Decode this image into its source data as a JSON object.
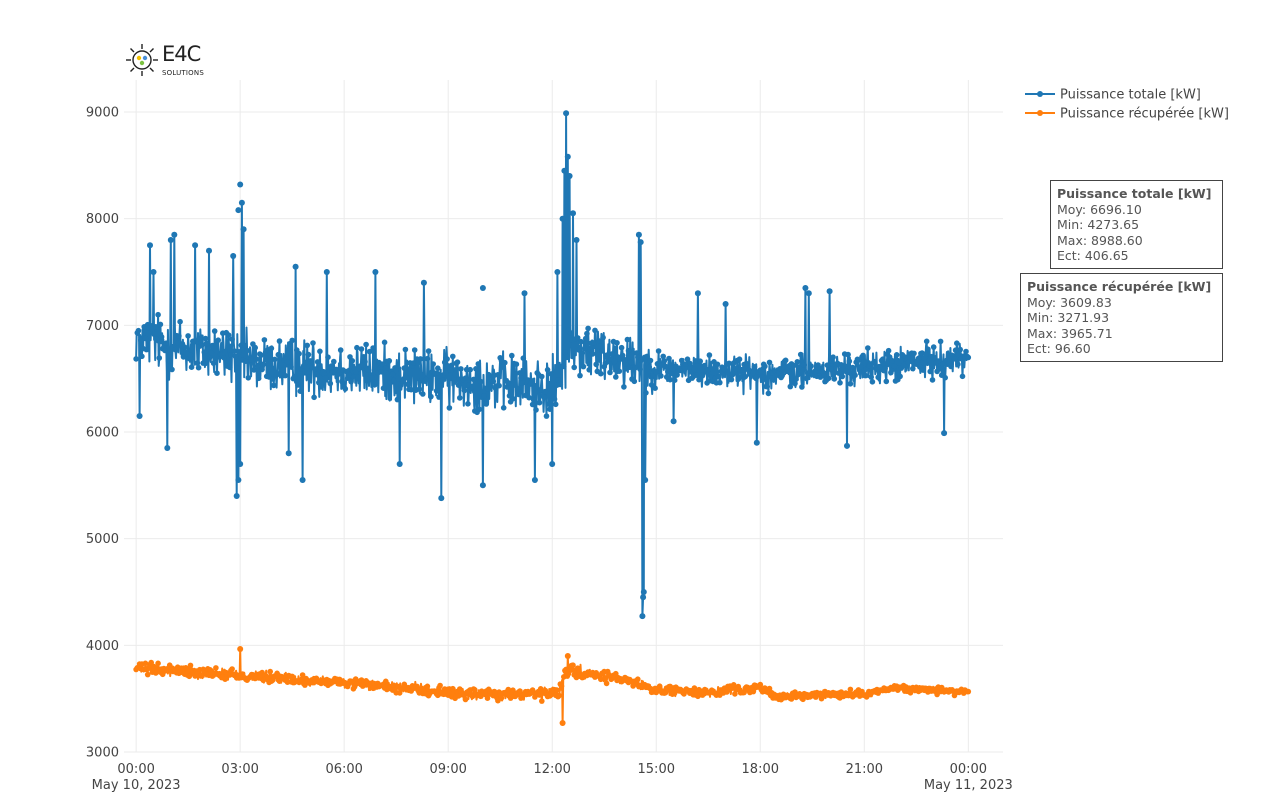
{
  "logo": {
    "text": "E4C",
    "subtext": "SOLUTIONS"
  },
  "chart_data": {
    "type": "line",
    "title": "",
    "xlabel": "",
    "ylabel": "",
    "ylim": [
      3000,
      9300
    ],
    "xlim_hours": [
      -0.35,
      25.0
    ],
    "y_ticks": [
      3000,
      4000,
      5000,
      6000,
      7000,
      8000,
      9000
    ],
    "x_ticks": [
      {
        "hour": 0,
        "label": "00:00",
        "date": "May 10, 2023"
      },
      {
        "hour": 3,
        "label": "03:00",
        "date": ""
      },
      {
        "hour": 6,
        "label": "06:00",
        "date": ""
      },
      {
        "hour": 9,
        "label": "09:00",
        "date": ""
      },
      {
        "hour": 12,
        "label": "12:00",
        "date": ""
      },
      {
        "hour": 15,
        "label": "15:00",
        "date": ""
      },
      {
        "hour": 18,
        "label": "18:00",
        "date": ""
      },
      {
        "hour": 21,
        "label": "21:00",
        "date": ""
      },
      {
        "hour": 24,
        "label": "00:00",
        "date": "May 11, 2023"
      }
    ],
    "grid": true,
    "legend_position": "top-right",
    "series": [
      {
        "name": "Puissance totale [kW]",
        "color": "#1f77b4",
        "stats": {
          "moy": "6696.10",
          "min": "4273.65",
          "max": "8988.60",
          "ect": "406.65"
        },
        "profile": [
          [
            0.0,
            6900,
            350
          ],
          [
            1.0,
            6800,
            420
          ],
          [
            2.0,
            6750,
            380
          ],
          [
            2.9,
            6700,
            400
          ],
          [
            3.2,
            6650,
            380
          ],
          [
            5.0,
            6600,
            380
          ],
          [
            7.0,
            6550,
            380
          ],
          [
            9.0,
            6500,
            380
          ],
          [
            11.0,
            6450,
            380
          ],
          [
            12.2,
            6400,
            400
          ],
          [
            12.4,
            6800,
            420
          ],
          [
            14.0,
            6700,
            380
          ],
          [
            14.7,
            6600,
            380
          ],
          [
            15.0,
            6600,
            220
          ],
          [
            18.0,
            6550,
            230
          ],
          [
            19.0,
            6550,
            230
          ],
          [
            21.0,
            6600,
            230
          ],
          [
            24.0,
            6700,
            220
          ]
        ],
        "peaks": [
          [
            0.4,
            7750
          ],
          [
            0.5,
            7500
          ],
          [
            1.0,
            7800
          ],
          [
            1.1,
            7850
          ],
          [
            1.7,
            7750
          ],
          [
            2.1,
            7700
          ],
          [
            2.8,
            7650
          ],
          [
            2.95,
            8080
          ],
          [
            3.0,
            8320
          ],
          [
            3.05,
            8150
          ],
          [
            3.1,
            7900
          ],
          [
            4.6,
            7550
          ],
          [
            5.5,
            7500
          ],
          [
            6.9,
            7500
          ],
          [
            8.3,
            7400
          ],
          [
            10.0,
            7350
          ],
          [
            11.2,
            7300
          ],
          [
            12.15,
            7500
          ],
          [
            12.3,
            8000
          ],
          [
            12.35,
            8450
          ],
          [
            12.4,
            8988.6
          ],
          [
            12.45,
            8580
          ],
          [
            12.5,
            8400
          ],
          [
            12.6,
            8050
          ],
          [
            12.7,
            7800
          ],
          [
            14.5,
            7850
          ],
          [
            14.55,
            7780
          ],
          [
            16.2,
            7300
          ],
          [
            17.0,
            7200
          ],
          [
            19.3,
            7350
          ],
          [
            19.4,
            7300
          ],
          [
            20.0,
            7320
          ]
        ],
        "troughs": [
          [
            0.1,
            6150
          ],
          [
            0.9,
            5850
          ],
          [
            2.9,
            5400
          ],
          [
            2.95,
            5550
          ],
          [
            3.0,
            5700
          ],
          [
            4.4,
            5800
          ],
          [
            4.8,
            5550
          ],
          [
            7.6,
            5700
          ],
          [
            8.8,
            5380
          ],
          [
            10.0,
            5500
          ],
          [
            11.5,
            5550
          ],
          [
            12.0,
            5700
          ],
          [
            14.6,
            4273.65
          ],
          [
            14.62,
            4450
          ],
          [
            14.64,
            4500
          ],
          [
            14.68,
            5550
          ],
          [
            15.5,
            6100
          ],
          [
            17.9,
            5900
          ],
          [
            20.5,
            5870
          ],
          [
            23.3,
            5990
          ]
        ]
      },
      {
        "name": "Puissance récupérée [kW]",
        "color": "#ff7f0e",
        "stats": {
          "moy": "3609.83",
          "min": "3271.93",
          "max": "3965.71",
          "ect": "96.60"
        },
        "profile": [
          [
            0.0,
            3780,
            80
          ],
          [
            1.0,
            3770,
            80
          ],
          [
            2.0,
            3750,
            80
          ],
          [
            3.0,
            3720,
            85
          ],
          [
            5.0,
            3670,
            70
          ],
          [
            7.0,
            3620,
            70
          ],
          [
            9.0,
            3560,
            80
          ],
          [
            10.5,
            3530,
            80
          ],
          [
            12.2,
            3550,
            90
          ],
          [
            12.4,
            3760,
            90
          ],
          [
            14.0,
            3680,
            70
          ],
          [
            15.0,
            3580,
            60
          ],
          [
            16.5,
            3560,
            60
          ],
          [
            18.0,
            3600,
            60
          ],
          [
            18.5,
            3520,
            50
          ],
          [
            21.0,
            3550,
            50
          ],
          [
            22.0,
            3600,
            50
          ],
          [
            24.0,
            3560,
            50
          ]
        ],
        "peaks": [
          [
            3.0,
            3965.71
          ],
          [
            12.45,
            3900
          ]
        ],
        "troughs": [
          [
            12.3,
            3271.93
          ]
        ]
      }
    ]
  },
  "legend": {
    "items": [
      {
        "label": "Puissance totale [kW]",
        "color": "#1f77b4"
      },
      {
        "label": "Puissance récupérée [kW]",
        "color": "#ff7f0e"
      }
    ]
  },
  "stat_boxes": [
    {
      "title": "Puissance totale [kW]",
      "moy": "Moy: 6696.10",
      "min": "Min: 4273.65",
      "max": "Max: 8988.60",
      "ect": "Ect: 406.65"
    },
    {
      "title": "Puissance récupérée [kW]",
      "moy": "Moy: 3609.83",
      "min": "Min: 3271.93",
      "max": "Max: 3965.71",
      "ect": "Ect: 96.60"
    }
  ]
}
